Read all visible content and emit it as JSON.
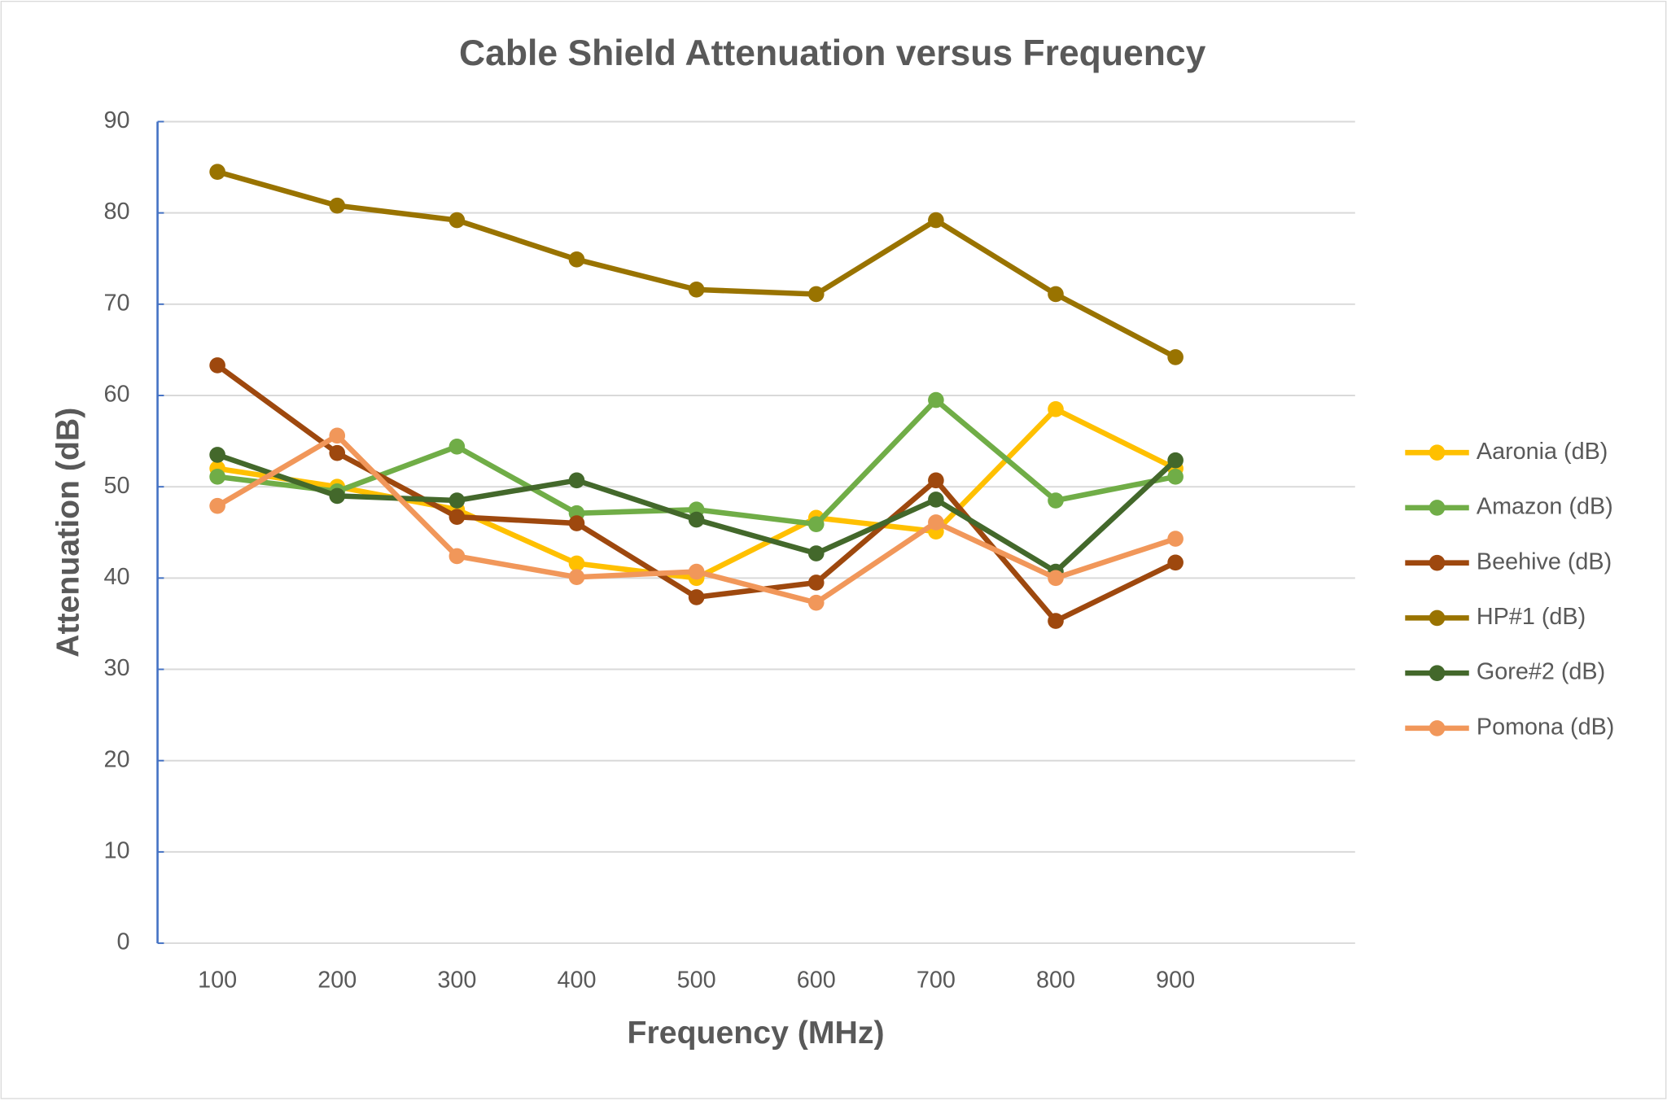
{
  "chart_data": {
    "type": "line",
    "title": "Cable Shield Attenuation versus Frequency",
    "x_label": "Frequency (MHz)",
    "y_label": "Attenuation (dB)",
    "x": [
      100,
      200,
      300,
      400,
      500,
      600,
      700,
      800,
      900
    ],
    "xlim": [
      50,
      1050
    ],
    "xticks": [
      100,
      200,
      300,
      400,
      500,
      600,
      700,
      800,
      900
    ],
    "ylim": [
      0,
      90
    ],
    "yticks": [
      0,
      10,
      20,
      30,
      40,
      50,
      60,
      70,
      80,
      90
    ],
    "grid": true,
    "legend": "right",
    "series": [
      {
        "name": "Aaronia (dB)",
        "color": "#FFC000",
        "values": [
          52.0,
          50.0,
          47.5,
          41.6,
          40.0,
          46.6,
          45.1,
          58.5,
          52.0
        ]
      },
      {
        "name": "Amazon (dB)",
        "color": "#70AD47",
        "values": [
          51.1,
          49.5,
          54.4,
          47.1,
          47.5,
          45.9,
          59.5,
          48.5,
          51.1
        ]
      },
      {
        "name": "Beehive (dB)",
        "color": "#9E480E",
        "values": [
          63.3,
          53.7,
          46.7,
          46.0,
          37.9,
          39.5,
          50.7,
          35.3,
          41.7
        ]
      },
      {
        "name": "HP#1 (dB)",
        "color": "#997300",
        "values": [
          84.5,
          80.8,
          79.2,
          74.9,
          71.6,
          71.1,
          79.2,
          71.1,
          64.2
        ]
      },
      {
        "name": "Gore#2 (dB)",
        "color": "#43682B",
        "values": [
          53.5,
          49.0,
          48.5,
          50.7,
          46.4,
          42.7,
          48.6,
          40.7,
          52.9
        ]
      },
      {
        "name": "Pomona (dB)",
        "color": "#F1975A",
        "values": [
          47.9,
          55.6,
          42.4,
          40.1,
          40.7,
          37.3,
          46.1,
          40.0,
          44.3
        ]
      }
    ]
  }
}
